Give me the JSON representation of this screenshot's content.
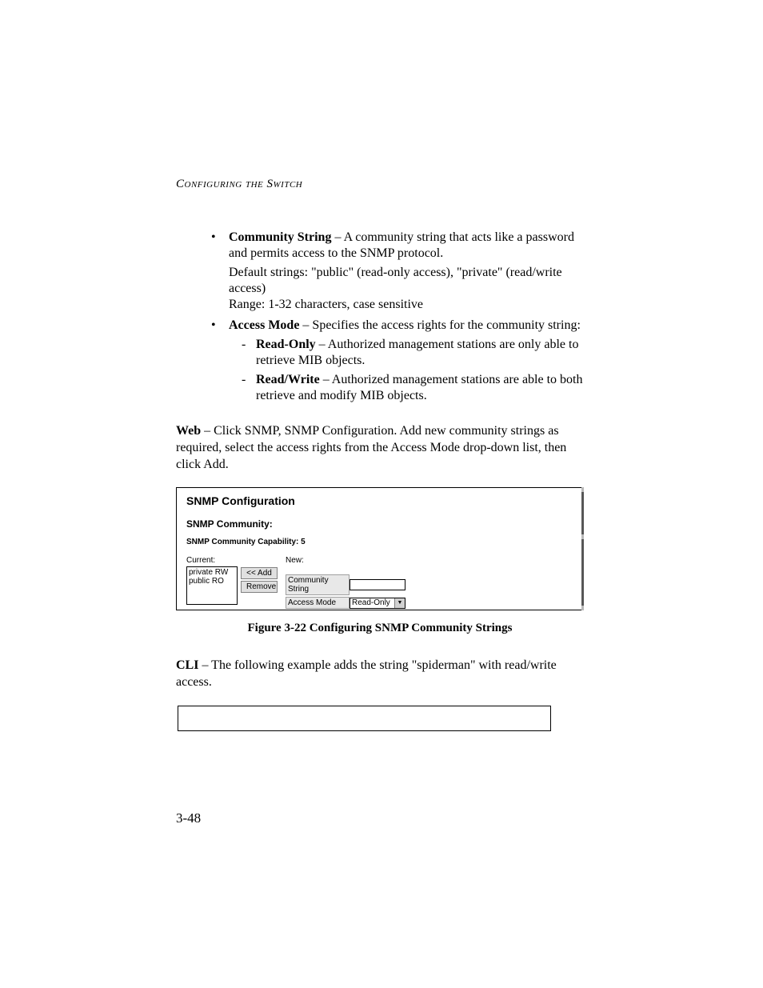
{
  "header": "Configuring the Switch",
  "bullets": {
    "community": {
      "label": "Community String",
      "desc": " – A community string that acts like a password and permits access to the SNMP protocol.",
      "defaults": "Default strings: \"public\" (read-only access), \"private\" (read/write access)",
      "range": "Range: 1-32 characters, case sensitive"
    },
    "access": {
      "label": "Access Mode",
      "desc": " – Specifies the access rights for the community string:",
      "ro_label": "Read-Only",
      "ro_desc": " – Authorized management stations are only able to retrieve MIB objects.",
      "rw_label": "Read/Write",
      "rw_desc": " – Authorized management stations are able to both retrieve and modify MIB objects."
    }
  },
  "web_label": "Web",
  "web_para": " – Click SNMP, SNMP Configuration. Add new community strings as required, select the access rights from the Access Mode drop-down list, then click Add.",
  "screenshot": {
    "title": "SNMP Configuration",
    "subtitle": "SNMP Community:",
    "capability": "SNMP Community Capability: 5",
    "current_label": "Current:",
    "new_label": "New:",
    "list_items": [
      "private RW",
      "public RO"
    ],
    "add_button": "<< Add",
    "remove_button": "Remove",
    "row_community_label": "Community String",
    "row_access_label": "Access Mode",
    "dropdown_value": "Read-Only"
  },
  "figure_caption": "Figure 3-22  Configuring SNMP Community Strings",
  "cli_label": "CLI",
  "cli_para": " – The following example adds the string \"spiderman\" with read/write access.",
  "page_number": "3-48"
}
